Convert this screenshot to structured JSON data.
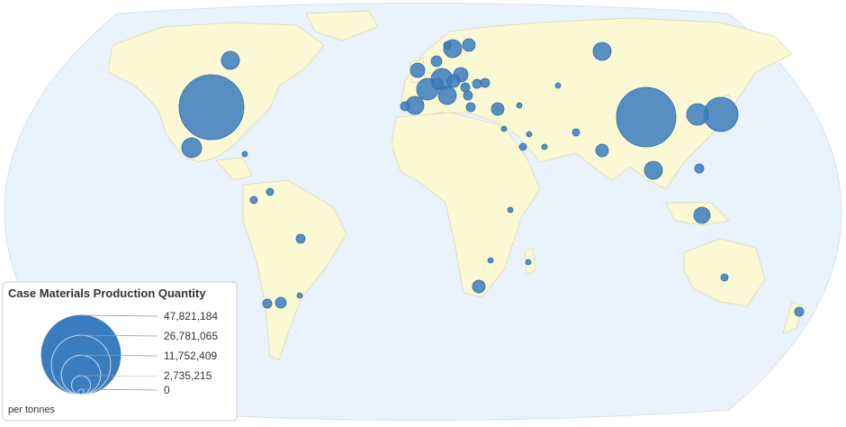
{
  "map": {
    "legend": {
      "title": "Case Materials Production Quantity",
      "unit": "per tonnes",
      "sizes": [
        {
          "value": 47821184,
          "label": "47,821,184"
        },
        {
          "value": 26781065,
          "label": "26,781,065"
        },
        {
          "value": 11752409,
          "label": "11,752,409"
        },
        {
          "value": 2735215,
          "label": "2,735,215"
        },
        0
      ]
    },
    "color": "#3a7dbf",
    "bubbles": [
      32010000,
      26900000,
      8920000,
      3557000,
      2470000,
      2989000,
      2470000,
      2470000,
      1210000,
      1581000,
      2470000,
      3557000,
      2470000,
      3557000,
      1581000,
      1210000,
      1210000,
      2470000,
      2000000,
      617000,
      617000,
      889000,
      617000,
      1210000,
      395000,
      617000,
      395000,
      395000,
      222000,
      222000,
      395000,
      395000,
      222000,
      222000,
      222000,
      222000,
      222000,
      617000,
      1210000,
      889000,
      617000,
      617000,
      617000,
      617000,
      617000,
      395000,
      222000,
      222000,
      222000,
      889000
    ]
  }
}
